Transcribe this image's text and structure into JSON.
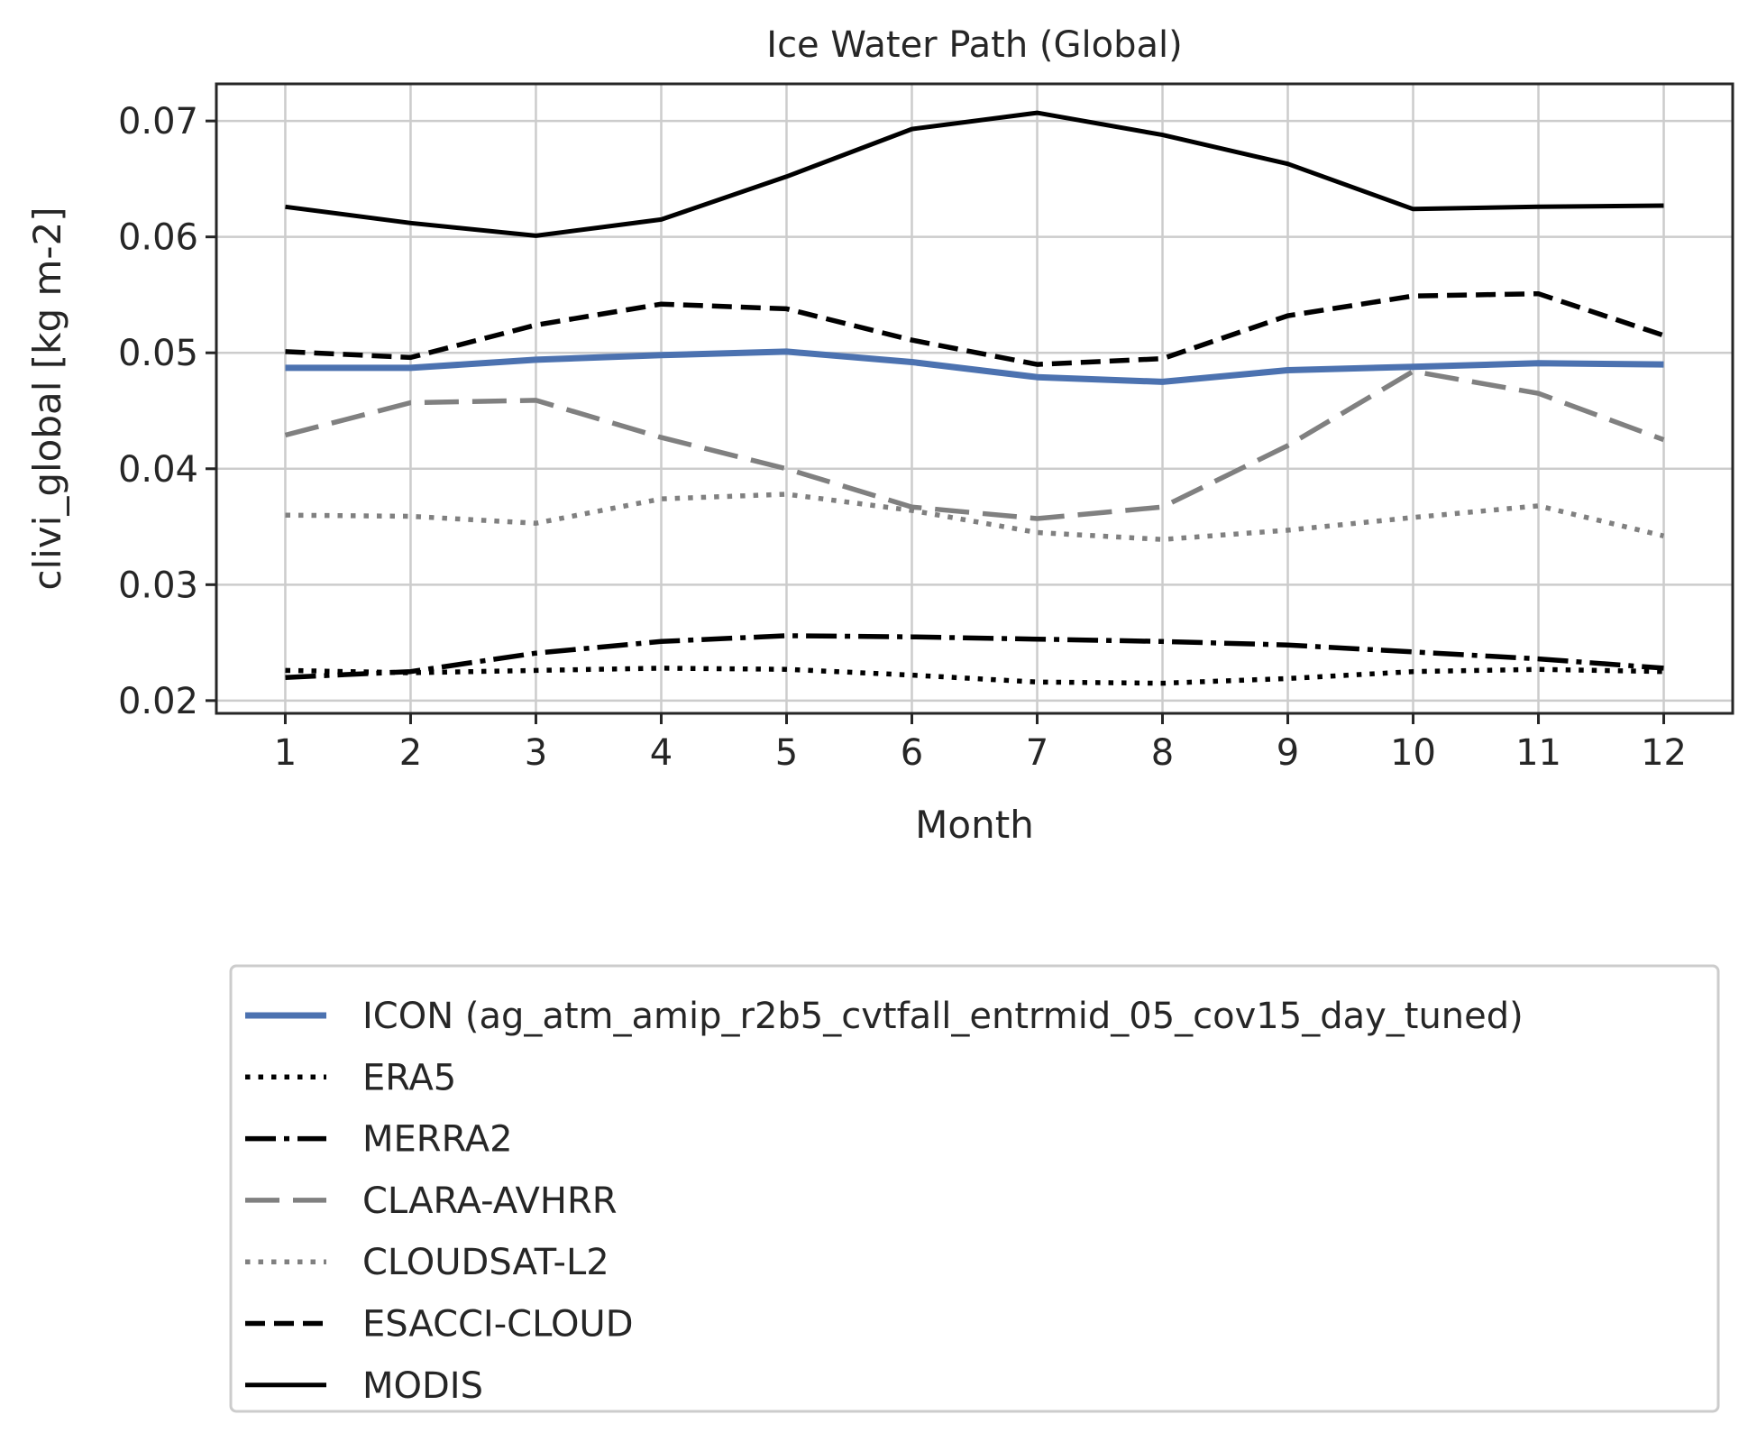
{
  "chart_data": {
    "type": "line",
    "title": "Ice Water Path (Global)",
    "xlabel": "Month",
    "ylabel": "clivi_global [kg m-2]",
    "x": [
      1,
      2,
      3,
      4,
      5,
      6,
      7,
      8,
      9,
      10,
      11,
      12
    ],
    "xlim": [
      0.45,
      12.55
    ],
    "ylim": [
      0.0189,
      0.0732
    ],
    "xticks": [
      "1",
      "2",
      "3",
      "4",
      "5",
      "6",
      "7",
      "8",
      "9",
      "10",
      "11",
      "12"
    ],
    "yticks": [
      0.02,
      0.03,
      0.04,
      0.05,
      0.06,
      0.07
    ],
    "ytick_labels": [
      "0.02",
      "0.03",
      "0.04",
      "0.05",
      "0.06",
      "0.07"
    ],
    "grid": true,
    "legend_position": "below-plot",
    "series": [
      {
        "name": "ICON (ag_atm_amip_r2b5_cvtfall_entrmid_05_cov15_day_tuned)",
        "color": "#4c72b0",
        "style": "solid-thick",
        "values": [
          0.0487,
          0.0487,
          0.0494,
          0.0498,
          0.0501,
          0.0492,
          0.0479,
          0.0475,
          0.0485,
          0.0488,
          0.0491,
          0.049
        ]
      },
      {
        "name": "ERA5",
        "color": "#000000",
        "style": "dotted",
        "values": [
          0.0226,
          0.0224,
          0.0226,
          0.0228,
          0.0227,
          0.0222,
          0.0216,
          0.0215,
          0.0219,
          0.0225,
          0.0227,
          0.0225
        ]
      },
      {
        "name": "MERRA2",
        "color": "#000000",
        "style": "dashdot",
        "values": [
          0.022,
          0.0225,
          0.0241,
          0.0251,
          0.0256,
          0.0255,
          0.0253,
          0.0251,
          0.0248,
          0.0242,
          0.0236,
          0.0228
        ]
      },
      {
        "name": "CLARA-AVHRR",
        "color": "#808080",
        "style": "dashed-long",
        "values": [
          0.0429,
          0.0457,
          0.0459,
          0.0427,
          0.04,
          0.0367,
          0.0357,
          0.0367,
          0.042,
          0.0484,
          0.0465,
          0.0425
        ]
      },
      {
        "name": "CLOUDSAT-L2",
        "color": "#808080",
        "style": "dotted",
        "values": [
          0.036,
          0.0359,
          0.0353,
          0.0374,
          0.0378,
          0.0364,
          0.0345,
          0.0339,
          0.0347,
          0.0358,
          0.0368,
          0.0342
        ]
      },
      {
        "name": "ESACCI-CLOUD",
        "color": "#000000",
        "style": "dashed",
        "values": [
          0.0501,
          0.0496,
          0.0524,
          0.0542,
          0.0538,
          0.0511,
          0.049,
          0.0495,
          0.0532,
          0.0549,
          0.0551,
          0.0515
        ]
      },
      {
        "name": "MODIS",
        "color": "#000000",
        "style": "solid",
        "values": [
          0.0626,
          0.0612,
          0.0601,
          0.0615,
          0.0652,
          0.0693,
          0.0707,
          0.0688,
          0.0663,
          0.0624,
          0.0626,
          0.0627
        ]
      }
    ]
  }
}
